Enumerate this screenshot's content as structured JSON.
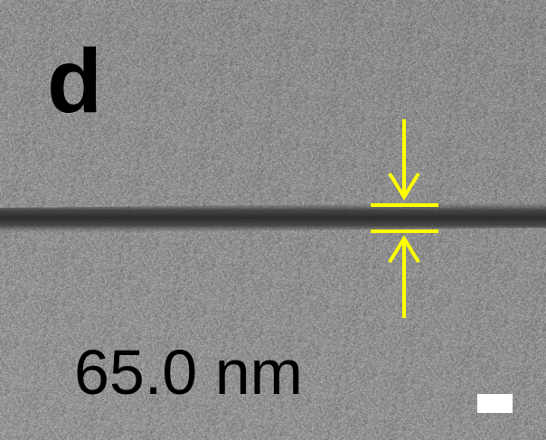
{
  "figure": {
    "panel_label": "d",
    "thickness_label": "65.0 nm",
    "icons": {
      "arrow_down": "arrow-down-icon",
      "arrow_up": "arrow-up-icon",
      "scale_bar": "scale-bar"
    },
    "colors": {
      "background_gray": "#8e8e8e",
      "film_dark": "#2e2e2e",
      "annotation_yellow": "#ffff00",
      "scale_bar": "#ffffff",
      "text": "#000000"
    }
  }
}
